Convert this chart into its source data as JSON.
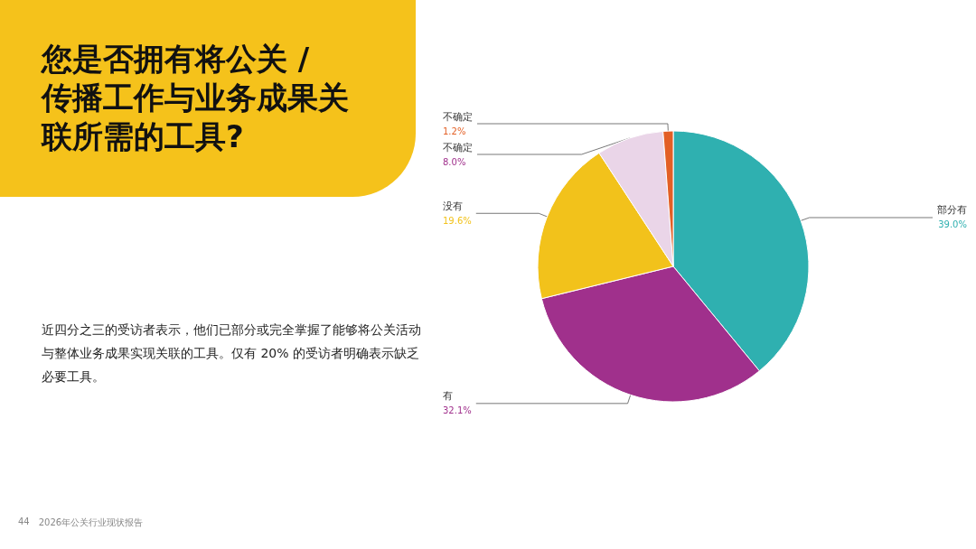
{
  "chart_data": {
    "type": "pie",
    "title": "您是否拥有将公关 / 传播工作与业务成果关联所需的工具?",
    "categories": [
      "部分有",
      "有",
      "没有",
      "不确定",
      "不确定"
    ],
    "values": [
      39.0,
      32.1,
      19.6,
      8.0,
      1.2
    ],
    "value_labels": [
      "39.0%",
      "32.1%",
      "19.6%",
      "8.0%",
      "1.2%"
    ],
    "colors": [
      "#2fb0b0",
      "#a0308c",
      "#f2c21b",
      "#ead5e8",
      "#e35f25"
    ],
    "legend": false,
    "annotations": [
      "近四分之三的受访者表示，他们已部分或完全掌握了能够将公关活动与整体业务成果实现关联的工具。仅有 20% 的受访者明确表示缺乏必要工具。",
      "44",
      "2026年公关行业现状报告"
    ]
  }
}
